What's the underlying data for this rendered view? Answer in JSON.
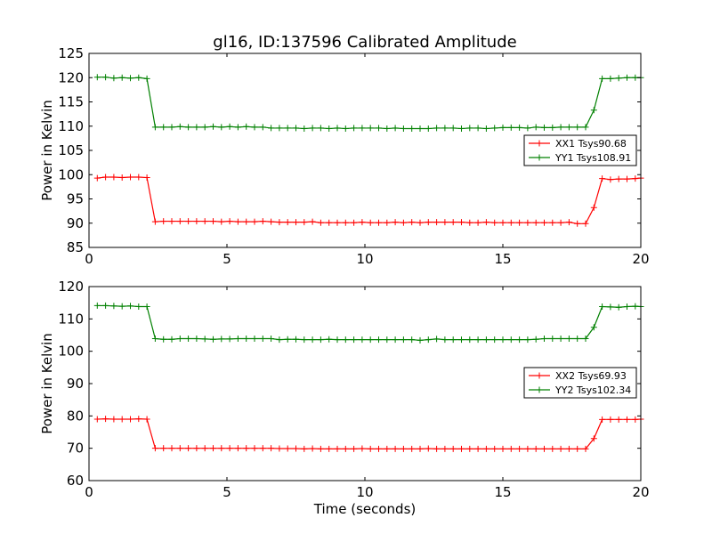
{
  "figure": {
    "title": "gl16, ID:137596 Calibrated Amplitude",
    "xlabel": "Time (seconds)"
  },
  "chart_data": [
    {
      "type": "line",
      "title": "gl16, ID:137596 Calibrated Amplitude",
      "xlabel": "",
      "ylabel": "Power in Kelvin",
      "xlim": [
        0,
        20
      ],
      "ylim": [
        85,
        125
      ],
      "xticks": [
        0,
        5,
        10,
        15,
        20
      ],
      "yticks": [
        85,
        90,
        95,
        100,
        105,
        110,
        115,
        120,
        125
      ],
      "legend_position": "right",
      "series": [
        {
          "name": "XX1 Tsys90.68",
          "color": "#ff0000",
          "x": [
            0.3,
            0.6,
            0.9,
            1.2,
            1.5,
            1.8,
            2.1,
            2.4,
            2.7,
            3.0,
            3.3,
            3.6,
            3.9,
            4.2,
            4.5,
            4.8,
            5.1,
            5.4,
            5.7,
            6.0,
            6.3,
            6.6,
            6.9,
            7.2,
            7.5,
            7.8,
            8.1,
            8.4,
            8.7,
            9.0,
            9.3,
            9.6,
            9.9,
            10.2,
            10.5,
            10.8,
            11.1,
            11.4,
            11.7,
            12.0,
            12.3,
            12.6,
            12.9,
            13.2,
            13.5,
            13.8,
            14.1,
            14.4,
            14.7,
            15.0,
            15.3,
            15.6,
            15.9,
            16.2,
            16.5,
            16.8,
            17.1,
            17.4,
            17.7,
            18.0,
            18.3,
            18.6,
            18.9,
            19.2,
            19.5,
            19.8,
            20.0
          ],
          "values": [
            99.3,
            99.5,
            99.5,
            99.4,
            99.5,
            99.5,
            99.4,
            90.3,
            90.4,
            90.4,
            90.4,
            90.4,
            90.4,
            90.4,
            90.4,
            90.3,
            90.4,
            90.3,
            90.3,
            90.3,
            90.4,
            90.3,
            90.2,
            90.2,
            90.2,
            90.2,
            90.3,
            90.1,
            90.1,
            90.1,
            90.1,
            90.1,
            90.2,
            90.1,
            90.1,
            90.1,
            90.2,
            90.1,
            90.2,
            90.1,
            90.2,
            90.2,
            90.2,
            90.2,
            90.2,
            90.1,
            90.1,
            90.2,
            90.1,
            90.1,
            90.1,
            90.1,
            90.1,
            90.1,
            90.1,
            90.1,
            90.1,
            90.2,
            89.9,
            89.9,
            93.2,
            99.2,
            99.0,
            99.1,
            99.1,
            99.2,
            99.3
          ]
        },
        {
          "name": "YY1 Tsys108.91",
          "color": "#008000",
          "x": [
            0.3,
            0.6,
            0.9,
            1.2,
            1.5,
            1.8,
            2.1,
            2.4,
            2.7,
            3.0,
            3.3,
            3.6,
            3.9,
            4.2,
            4.5,
            4.8,
            5.1,
            5.4,
            5.7,
            6.0,
            6.3,
            6.6,
            6.9,
            7.2,
            7.5,
            7.8,
            8.1,
            8.4,
            8.7,
            9.0,
            9.3,
            9.6,
            9.9,
            10.2,
            10.5,
            10.8,
            11.1,
            11.4,
            11.7,
            12.0,
            12.3,
            12.6,
            12.9,
            13.2,
            13.5,
            13.8,
            14.1,
            14.4,
            14.7,
            15.0,
            15.3,
            15.6,
            15.9,
            16.2,
            16.5,
            16.8,
            17.1,
            17.4,
            17.7,
            18.0,
            18.3,
            18.6,
            18.9,
            19.2,
            19.5,
            19.8,
            20.0
          ],
          "values": [
            120.1,
            120.1,
            119.9,
            120.0,
            119.9,
            120.0,
            119.8,
            109.8,
            109.8,
            109.8,
            109.9,
            109.8,
            109.8,
            109.8,
            109.9,
            109.8,
            109.9,
            109.8,
            109.9,
            109.8,
            109.8,
            109.6,
            109.6,
            109.6,
            109.6,
            109.5,
            109.6,
            109.6,
            109.5,
            109.6,
            109.5,
            109.6,
            109.6,
            109.6,
            109.6,
            109.5,
            109.6,
            109.5,
            109.5,
            109.5,
            109.5,
            109.6,
            109.6,
            109.6,
            109.5,
            109.6,
            109.6,
            109.5,
            109.6,
            109.7,
            109.7,
            109.7,
            109.6,
            109.8,
            109.7,
            109.7,
            109.8,
            109.8,
            109.8,
            109.8,
            113.3,
            119.8,
            119.8,
            119.9,
            120.0,
            120.0,
            120.0
          ]
        }
      ]
    },
    {
      "type": "line",
      "title": "",
      "xlabel": "Time (seconds)",
      "ylabel": "Power in Kelvin",
      "xlim": [
        0,
        20
      ],
      "ylim": [
        60,
        120
      ],
      "xticks": [
        0,
        5,
        10,
        15,
        20
      ],
      "yticks": [
        60,
        70,
        80,
        90,
        100,
        110,
        120
      ],
      "legend_position": "right",
      "series": [
        {
          "name": "XX2 Tsys69.93",
          "color": "#ff0000",
          "x": [
            0.3,
            0.6,
            0.9,
            1.2,
            1.5,
            1.8,
            2.1,
            2.4,
            2.7,
            3.0,
            3.3,
            3.6,
            3.9,
            4.2,
            4.5,
            4.8,
            5.1,
            5.4,
            5.7,
            6.0,
            6.3,
            6.6,
            6.9,
            7.2,
            7.5,
            7.8,
            8.1,
            8.4,
            8.7,
            9.0,
            9.3,
            9.6,
            9.9,
            10.2,
            10.5,
            10.8,
            11.1,
            11.4,
            11.7,
            12.0,
            12.3,
            12.6,
            12.9,
            13.2,
            13.5,
            13.8,
            14.1,
            14.4,
            14.7,
            15.0,
            15.3,
            15.6,
            15.9,
            16.2,
            16.5,
            16.8,
            17.1,
            17.4,
            17.7,
            18.0,
            18.3,
            18.6,
            18.9,
            19.2,
            19.5,
            19.8,
            20.0
          ],
          "values": [
            79.0,
            79.1,
            79.0,
            79.0,
            79.0,
            79.1,
            79.0,
            70.0,
            70.0,
            70.0,
            70.0,
            70.0,
            70.0,
            70.0,
            70.0,
            70.0,
            70.0,
            70.0,
            70.0,
            70.0,
            70.0,
            70.0,
            69.9,
            69.9,
            69.9,
            69.8,
            69.9,
            69.8,
            69.8,
            69.8,
            69.8,
            69.8,
            69.9,
            69.8,
            69.8,
            69.8,
            69.8,
            69.8,
            69.8,
            69.8,
            69.9,
            69.8,
            69.8,
            69.8,
            69.8,
            69.8,
            69.8,
            69.8,
            69.8,
            69.8,
            69.8,
            69.8,
            69.8,
            69.8,
            69.8,
            69.8,
            69.8,
            69.8,
            69.8,
            69.8,
            73.0,
            78.9,
            78.9,
            78.9,
            78.9,
            78.9,
            79.0
          ]
        },
        {
          "name": "YY2 Tsys102.34",
          "color": "#008000",
          "x": [
            0.3,
            0.6,
            0.9,
            1.2,
            1.5,
            1.8,
            2.1,
            2.4,
            2.7,
            3.0,
            3.3,
            3.6,
            3.9,
            4.2,
            4.5,
            4.8,
            5.1,
            5.4,
            5.7,
            6.0,
            6.3,
            6.6,
            6.9,
            7.2,
            7.5,
            7.8,
            8.1,
            8.4,
            8.7,
            9.0,
            9.3,
            9.6,
            9.9,
            10.2,
            10.5,
            10.8,
            11.1,
            11.4,
            11.7,
            12.0,
            12.3,
            12.6,
            12.9,
            13.2,
            13.5,
            13.8,
            14.1,
            14.4,
            14.7,
            15.0,
            15.3,
            15.6,
            15.9,
            16.2,
            16.5,
            16.8,
            17.1,
            17.4,
            17.7,
            18.0,
            18.3,
            18.6,
            18.9,
            19.2,
            19.5,
            19.8,
            20.0
          ],
          "values": [
            114.1,
            114.1,
            114.0,
            113.9,
            114.0,
            113.8,
            113.8,
            103.9,
            103.7,
            103.7,
            103.9,
            103.9,
            103.9,
            103.8,
            103.7,
            103.8,
            103.8,
            103.9,
            103.9,
            103.9,
            103.9,
            103.9,
            103.6,
            103.7,
            103.7,
            103.6,
            103.6,
            103.6,
            103.7,
            103.6,
            103.6,
            103.6,
            103.6,
            103.6,
            103.6,
            103.6,
            103.6,
            103.6,
            103.6,
            103.4,
            103.6,
            103.8,
            103.6,
            103.6,
            103.6,
            103.6,
            103.6,
            103.6,
            103.6,
            103.6,
            103.6,
            103.6,
            103.6,
            103.7,
            103.9,
            103.9,
            103.9,
            103.9,
            103.9,
            103.9,
            107.4,
            113.8,
            113.7,
            113.6,
            113.8,
            113.9,
            113.8
          ]
        }
      ]
    }
  ]
}
